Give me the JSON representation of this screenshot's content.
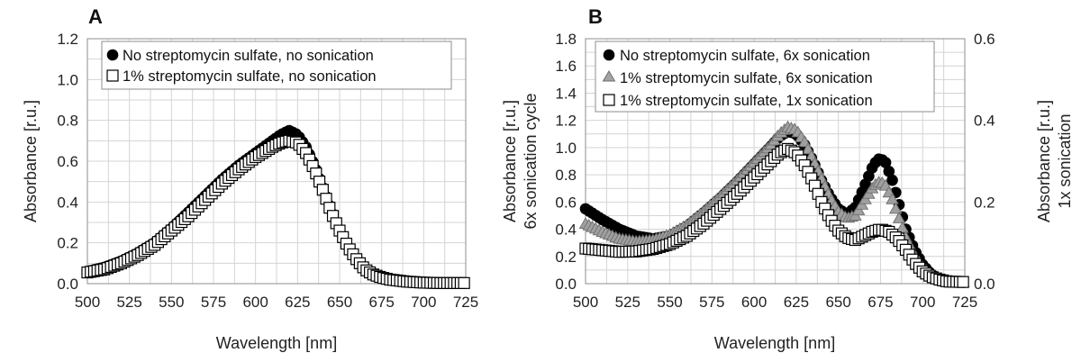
{
  "chart_data": [
    {
      "type": "scatter",
      "panel": "A",
      "title": "",
      "xlabel": "Wavelength [nm]",
      "ylabel": "Absorbance [r.u.]",
      "xlim": [
        500,
        725
      ],
      "ylim": [
        0,
        1.2
      ],
      "x_ticks": [
        "500",
        "525",
        "550",
        "575",
        "600",
        "625",
        "650",
        "675",
        "700",
        "725"
      ],
      "y_ticks": [
        "0.0",
        "0.2",
        "0.4",
        "0.6",
        "0.8",
        "1.0",
        "1.2"
      ],
      "x_step": 2,
      "legend_position": "top-center",
      "series": [
        {
          "name": "No streptomycin sulfate, no sonication",
          "marker": "filled-circle",
          "color": "#000000",
          "points": [
            [
              500,
              0.06
            ],
            [
              510,
              0.08
            ],
            [
              520,
              0.11
            ],
            [
              530,
              0.15
            ],
            [
              540,
              0.2
            ],
            [
              550,
              0.27
            ],
            [
              560,
              0.35
            ],
            [
              570,
              0.43
            ],
            [
              580,
              0.51
            ],
            [
              590,
              0.58
            ],
            [
              600,
              0.64
            ],
            [
              610,
              0.7
            ],
            [
              615,
              0.73
            ],
            [
              620,
              0.75
            ],
            [
              625,
              0.73
            ],
            [
              630,
              0.67
            ],
            [
              635,
              0.58
            ],
            [
              640,
              0.47
            ],
            [
              645,
              0.36
            ],
            [
              650,
              0.26
            ],
            [
              655,
              0.18
            ],
            [
              660,
              0.12
            ],
            [
              665,
              0.07
            ],
            [
              670,
              0.045
            ],
            [
              675,
              0.03
            ],
            [
              680,
              0.02
            ],
            [
              690,
              0.01
            ],
            [
              700,
              0.005
            ],
            [
              710,
              0.003
            ],
            [
              725,
              0.003
            ]
          ]
        },
        {
          "name": "1% streptomycin sulfate, no sonication",
          "marker": "open-square",
          "color": "#000000",
          "points": [
            [
              500,
              0.055
            ],
            [
              510,
              0.07
            ],
            [
              520,
              0.1
            ],
            [
              530,
              0.14
            ],
            [
              540,
              0.19
            ],
            [
              550,
              0.26
            ],
            [
              560,
              0.33
            ],
            [
              570,
              0.41
            ],
            [
              580,
              0.49
            ],
            [
              590,
              0.56
            ],
            [
              600,
              0.62
            ],
            [
              610,
              0.67
            ],
            [
              615,
              0.69
            ],
            [
              620,
              0.7
            ],
            [
              625,
              0.69
            ],
            [
              630,
              0.64
            ],
            [
              635,
              0.56
            ],
            [
              640,
              0.46
            ],
            [
              645,
              0.35
            ],
            [
              650,
              0.26
            ],
            [
              655,
              0.18
            ],
            [
              660,
              0.12
            ],
            [
              665,
              0.07
            ],
            [
              670,
              0.045
            ],
            [
              675,
              0.03
            ],
            [
              680,
              0.02
            ],
            [
              690,
              0.01
            ],
            [
              700,
              0.005
            ],
            [
              710,
              0.003
            ],
            [
              725,
              0.003
            ]
          ]
        }
      ]
    },
    {
      "type": "scatter",
      "panel": "B",
      "title": "",
      "xlabel": "Wavelength [nm]",
      "ylabel_lines": [
        "Absorbance [r.u.]",
        "6x sonication cycle"
      ],
      "ylabel2_lines": [
        "Absorbance [r.u.]",
        "1x sonication"
      ],
      "xlim": [
        500,
        725
      ],
      "ylim": [
        0,
        1.8
      ],
      "y2lim": [
        0,
        0.6
      ],
      "x_ticks": [
        "500",
        "525",
        "550",
        "575",
        "600",
        "625",
        "650",
        "675",
        "700",
        "725"
      ],
      "y_ticks": [
        "0.0",
        "0.2",
        "0.4",
        "0.6",
        "0.8",
        "1.0",
        "1.2",
        "1.4",
        "1.6",
        "1.8"
      ],
      "y2_ticks": [
        "0.0",
        "0.2",
        "0.4",
        "0.6"
      ],
      "x_step": 2,
      "legend_position": "top-left",
      "series": [
        {
          "name": "No streptomycin sulfate, 6x sonication",
          "marker": "filled-circle",
          "color": "#000000",
          "axis": "left",
          "points": [
            [
              500,
              0.55
            ],
            [
              510,
              0.47
            ],
            [
              520,
              0.4
            ],
            [
              530,
              0.35
            ],
            [
              540,
              0.33
            ],
            [
              550,
              0.35
            ],
            [
              560,
              0.42
            ],
            [
              570,
              0.52
            ],
            [
              580,
              0.63
            ],
            [
              590,
              0.75
            ],
            [
              600,
              0.88
            ],
            [
              610,
              1.01
            ],
            [
              615,
              1.08
            ],
            [
              620,
              1.12
            ],
            [
              625,
              1.1
            ],
            [
              630,
              1.02
            ],
            [
              635,
              0.9
            ],
            [
              640,
              0.76
            ],
            [
              645,
              0.64
            ],
            [
              650,
              0.55
            ],
            [
              655,
              0.51
            ],
            [
              660,
              0.56
            ],
            [
              665,
              0.7
            ],
            [
              670,
              0.85
            ],
            [
              673,
              0.91
            ],
            [
              675,
              0.92
            ],
            [
              678,
              0.89
            ],
            [
              682,
              0.76
            ],
            [
              686,
              0.58
            ],
            [
              690,
              0.4
            ],
            [
              695,
              0.25
            ],
            [
              700,
              0.14
            ],
            [
              705,
              0.07
            ],
            [
              710,
              0.03
            ],
            [
              715,
              0.015
            ],
            [
              725,
              0.01
            ]
          ]
        },
        {
          "name": "1% streptomycin sulfate, 6x sonication",
          "marker": "gray-triangle",
          "color": "#a0a0a0",
          "axis": "left",
          "points": [
            [
              500,
              0.44
            ],
            [
              510,
              0.38
            ],
            [
              520,
              0.33
            ],
            [
              530,
              0.31
            ],
            [
              540,
              0.32
            ],
            [
              550,
              0.36
            ],
            [
              560,
              0.43
            ],
            [
              570,
              0.53
            ],
            [
              580,
              0.64
            ],
            [
              590,
              0.76
            ],
            [
              600,
              0.89
            ],
            [
              610,
              1.02
            ],
            [
              615,
              1.1
            ],
            [
              620,
              1.15
            ],
            [
              625,
              1.13
            ],
            [
              630,
              1.04
            ],
            [
              635,
              0.91
            ],
            [
              640,
              0.77
            ],
            [
              645,
              0.63
            ],
            [
              650,
              0.53
            ],
            [
              655,
              0.48
            ],
            [
              660,
              0.5
            ],
            [
              665,
              0.6
            ],
            [
              670,
              0.7
            ],
            [
              673,
              0.74
            ],
            [
              675,
              0.75
            ],
            [
              678,
              0.72
            ],
            [
              682,
              0.62
            ],
            [
              686,
              0.48
            ],
            [
              690,
              0.34
            ],
            [
              695,
              0.21
            ],
            [
              700,
              0.12
            ],
            [
              705,
              0.06
            ],
            [
              710,
              0.03
            ],
            [
              715,
              0.015
            ],
            [
              725,
              0.01
            ]
          ]
        },
        {
          "name": "1% streptomycin sulfate, 1x sonication",
          "marker": "open-square",
          "color": "#000000",
          "axis": "right",
          "points": [
            [
              500,
              0.086
            ],
            [
              510,
              0.082
            ],
            [
              520,
              0.078
            ],
            [
              530,
              0.079
            ],
            [
              540,
              0.085
            ],
            [
              550,
              0.097
            ],
            [
              560,
              0.117
            ],
            [
              570,
              0.147
            ],
            [
              580,
              0.183
            ],
            [
              590,
              0.22
            ],
            [
              600,
              0.26
            ],
            [
              610,
              0.3
            ],
            [
              615,
              0.32
            ],
            [
              620,
              0.33
            ],
            [
              625,
              0.32
            ],
            [
              630,
              0.29
            ],
            [
              635,
              0.25
            ],
            [
              640,
              0.2
            ],
            [
              645,
              0.16
            ],
            [
              650,
              0.13
            ],
            [
              655,
              0.113
            ],
            [
              660,
              0.107
            ],
            [
              665,
              0.117
            ],
            [
              670,
              0.127
            ],
            [
              675,
              0.133
            ],
            [
              680,
              0.127
            ],
            [
              685,
              0.11
            ],
            [
              690,
              0.083
            ],
            [
              695,
              0.053
            ],
            [
              700,
              0.03
            ],
            [
              705,
              0.017
            ],
            [
              710,
              0.01
            ],
            [
              715,
              0.005
            ],
            [
              725,
              0.004
            ]
          ]
        }
      ]
    }
  ]
}
